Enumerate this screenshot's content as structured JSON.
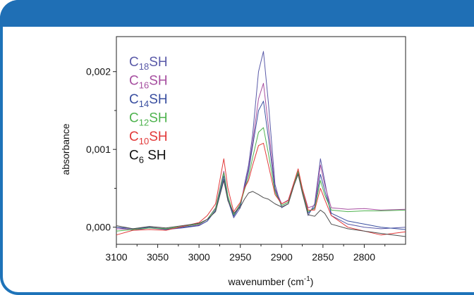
{
  "chart_data": {
    "type": "line",
    "title": "",
    "xlabel": "wavenumber (cm",
    "xlabel_sup": "-1",
    "xlabel_close": ")",
    "ylabel": "absorbance",
    "xlim": [
      3100,
      2750
    ],
    "ylim": [
      -0.00022,
      0.00245
    ],
    "x_reversed": true,
    "x_ticks": [
      {
        "value": 3100,
        "label": "3100"
      },
      {
        "value": 3050,
        "label": "3050"
      },
      {
        "value": 3000,
        "label": "3000"
      },
      {
        "value": 2950,
        "label": "2950"
      },
      {
        "value": 2900,
        "label": "2900"
      },
      {
        "value": 2850,
        "label": "2850"
      },
      {
        "value": 2800,
        "label": "2800"
      }
    ],
    "y_ticks": [
      {
        "value": 0.0,
        "label": "0,000"
      },
      {
        "value": 0.001,
        "label": "0,001"
      },
      {
        "value": 0.002,
        "label": "0,002"
      }
    ],
    "grid": false,
    "legend_position": "top-left",
    "series": [
      {
        "name_base": "C",
        "name_sub": "18",
        "name_rest": "SH",
        "color": "#5a5aa8",
        "points": [
          [
            3100,
            0.0
          ],
          [
            3080,
            -4e-05
          ],
          [
            3060,
            -1e-05
          ],
          [
            3040,
            -3e-05
          ],
          [
            3020,
            -1e-05
          ],
          [
            3000,
            2e-05
          ],
          [
            2990,
            8e-05
          ],
          [
            2980,
            0.00022
          ],
          [
            2970,
            0.00062
          ],
          [
            2965,
            0.00035
          ],
          [
            2958,
            0.00012
          ],
          [
            2950,
            0.00025
          ],
          [
            2945,
            0.00055
          ],
          [
            2940,
            0.0008
          ],
          [
            2935,
            0.0012
          ],
          [
            2928,
            0.002
          ],
          [
            2922,
            0.00226
          ],
          [
            2916,
            0.0016
          ],
          [
            2908,
            0.00055
          ],
          [
            2900,
            0.00025
          ],
          [
            2892,
            0.0003
          ],
          [
            2885,
            0.00055
          ],
          [
            2880,
            0.0007
          ],
          [
            2875,
            0.00045
          ],
          [
            2868,
            0.00015
          ],
          [
            2860,
            0.0003
          ],
          [
            2853,
            0.00088
          ],
          [
            2848,
            0.0006
          ],
          [
            2840,
            0.00015
          ],
          [
            2820,
            4e-05
          ],
          [
            2800,
            0.0
          ],
          [
            2780,
            -2e-05
          ],
          [
            2750,
            0.0
          ]
        ]
      },
      {
        "name_base": "C",
        "name_sub": "16",
        "name_rest": "SH",
        "color": "#a64fa0",
        "points": [
          [
            3100,
            -2e-05
          ],
          [
            3080,
            -3e-05
          ],
          [
            3060,
            0.0
          ],
          [
            3040,
            -2e-05
          ],
          [
            3020,
            0.0
          ],
          [
            3000,
            3e-05
          ],
          [
            2990,
            0.0001
          ],
          [
            2980,
            0.00025
          ],
          [
            2970,
            0.00072
          ],
          [
            2965,
            0.0004
          ],
          [
            2958,
            0.00015
          ],
          [
            2950,
            0.0003
          ],
          [
            2945,
            0.00052
          ],
          [
            2940,
            0.00075
          ],
          [
            2935,
            0.0011
          ],
          [
            2928,
            0.00165
          ],
          [
            2922,
            0.00185
          ],
          [
            2916,
            0.0013
          ],
          [
            2908,
            0.0005
          ],
          [
            2900,
            0.0003
          ],
          [
            2892,
            0.00035
          ],
          [
            2885,
            0.00058
          ],
          [
            2880,
            0.00072
          ],
          [
            2875,
            0.0005
          ],
          [
            2868,
            0.00025
          ],
          [
            2860,
            0.00028
          ],
          [
            2853,
            0.0008
          ],
          [
            2848,
            0.00055
          ],
          [
            2840,
            0.00025
          ],
          [
            2820,
            0.00023
          ],
          [
            2800,
            0.00024
          ],
          [
            2780,
            0.00022
          ],
          [
            2750,
            0.00023
          ]
        ]
      },
      {
        "name_base": "C",
        "name_sub": "14",
        "name_rest": "SH",
        "color": "#3a4fa0",
        "points": [
          [
            3100,
            0.0
          ],
          [
            3080,
            -2e-05
          ],
          [
            3060,
            0.0
          ],
          [
            3040,
            -3e-05
          ],
          [
            3020,
            0.0
          ],
          [
            3000,
            2e-05
          ],
          [
            2990,
            8e-05
          ],
          [
            2980,
            0.00022
          ],
          [
            2970,
            0.00066
          ],
          [
            2965,
            0.00036
          ],
          [
            2958,
            0.00014
          ],
          [
            2950,
            0.00028
          ],
          [
            2945,
            0.0005
          ],
          [
            2940,
            0.00072
          ],
          [
            2935,
            0.00105
          ],
          [
            2928,
            0.0015
          ],
          [
            2922,
            0.00162
          ],
          [
            2916,
            0.00115
          ],
          [
            2908,
            0.00048
          ],
          [
            2900,
            0.00028
          ],
          [
            2892,
            0.00032
          ],
          [
            2885,
            0.00056
          ],
          [
            2880,
            0.00071
          ],
          [
            2875,
            0.00048
          ],
          [
            2868,
            0.00018
          ],
          [
            2860,
            0.00026
          ],
          [
            2853,
            0.00068
          ],
          [
            2848,
            0.00048
          ],
          [
            2840,
            0.00018
          ],
          [
            2820,
            8e-05
          ],
          [
            2800,
            4e-05
          ],
          [
            2780,
            0.0
          ],
          [
            2750,
            -3e-05
          ]
        ]
      },
      {
        "name_base": "C",
        "name_sub": "12",
        "name_rest": "SH",
        "color": "#4fb34f",
        "points": [
          [
            3100,
            -5e-05
          ],
          [
            3080,
            -3e-05
          ],
          [
            3060,
            -1e-05
          ],
          [
            3040,
            -2e-05
          ],
          [
            3020,
            1e-05
          ],
          [
            3000,
            4e-05
          ],
          [
            2990,
            0.0001
          ],
          [
            2980,
            0.00024
          ],
          [
            2970,
            0.0007
          ],
          [
            2965,
            0.0004
          ],
          [
            2958,
            0.00016
          ],
          [
            2950,
            0.0003
          ],
          [
            2945,
            0.00048
          ],
          [
            2940,
            0.00065
          ],
          [
            2935,
            0.0009
          ],
          [
            2928,
            0.00122
          ],
          [
            2922,
            0.00128
          ],
          [
            2916,
            0.00095
          ],
          [
            2908,
            0.00045
          ],
          [
            2900,
            0.00028
          ],
          [
            2892,
            0.00032
          ],
          [
            2885,
            0.00055
          ],
          [
            2880,
            0.00072
          ],
          [
            2875,
            0.00048
          ],
          [
            2868,
            0.0002
          ],
          [
            2860,
            0.00024
          ],
          [
            2853,
            0.0006
          ],
          [
            2848,
            0.00042
          ],
          [
            2840,
            0.00022
          ],
          [
            2820,
            0.0002
          ],
          [
            2800,
            0.00021
          ],
          [
            2780,
            0.00021
          ],
          [
            2750,
            0.00022
          ]
        ]
      },
      {
        "name_base": "C",
        "name_sub": "10",
        "name_rest": "SH",
        "color": "#e23a3a",
        "points": [
          [
            3100,
            -0.0001
          ],
          [
            3080,
            -4e-05
          ],
          [
            3060,
            -3e-05
          ],
          [
            3040,
            -4e-05
          ],
          [
            3020,
            1e-05
          ],
          [
            3000,
            6e-05
          ],
          [
            2990,
            0.00015
          ],
          [
            2980,
            0.0003
          ],
          [
            2970,
            0.00088
          ],
          [
            2965,
            0.0005
          ],
          [
            2958,
            0.0002
          ],
          [
            2950,
            0.00032
          ],
          [
            2945,
            0.0005
          ],
          [
            2940,
            0.0006
          ],
          [
            2935,
            0.0008
          ],
          [
            2928,
            0.00105
          ],
          [
            2922,
            0.00108
          ],
          [
            2916,
            0.0008
          ],
          [
            2908,
            0.00042
          ],
          [
            2900,
            0.0003
          ],
          [
            2892,
            0.00034
          ],
          [
            2885,
            0.00058
          ],
          [
            2880,
            0.00075
          ],
          [
            2875,
            0.0005
          ],
          [
            2868,
            0.00022
          ],
          [
            2860,
            0.00022
          ],
          [
            2853,
            0.0005
          ],
          [
            2848,
            0.00036
          ],
          [
            2840,
            0.00015
          ],
          [
            2820,
            0.0
          ],
          [
            2800,
            -5e-05
          ],
          [
            2780,
            -0.0001
          ],
          [
            2750,
            -6e-05
          ]
        ]
      },
      {
        "name_base": "C",
        "name_sub": "6",
        "name_rest": " SH",
        "color": "#4d4d4d",
        "points": [
          [
            3100,
            2e-05
          ],
          [
            3080,
            -2e-05
          ],
          [
            3060,
            1e-05
          ],
          [
            3040,
            -1e-05
          ],
          [
            3020,
            2e-05
          ],
          [
            3000,
            5e-05
          ],
          [
            2990,
            0.0001
          ],
          [
            2980,
            0.0002
          ],
          [
            2970,
            0.0006
          ],
          [
            2965,
            0.00034
          ],
          [
            2958,
            0.00018
          ],
          [
            2950,
            0.00026
          ],
          [
            2945,
            0.00036
          ],
          [
            2940,
            0.00044
          ],
          [
            2935,
            0.00046
          ],
          [
            2928,
            0.00042
          ],
          [
            2922,
            0.00038
          ],
          [
            2916,
            0.00036
          ],
          [
            2908,
            0.0003
          ],
          [
            2900,
            0.00026
          ],
          [
            2892,
            0.0003
          ],
          [
            2885,
            0.00054
          ],
          [
            2880,
            0.00068
          ],
          [
            2875,
            0.00044
          ],
          [
            2868,
            0.00016
          ],
          [
            2860,
            0.00014
          ],
          [
            2853,
            0.00022
          ],
          [
            2848,
            0.00018
          ],
          [
            2840,
            4e-05
          ],
          [
            2820,
            -2e-05
          ],
          [
            2800,
            -5e-05
          ],
          [
            2780,
            -8e-05
          ],
          [
            2750,
            -0.00012
          ]
        ]
      }
    ]
  }
}
